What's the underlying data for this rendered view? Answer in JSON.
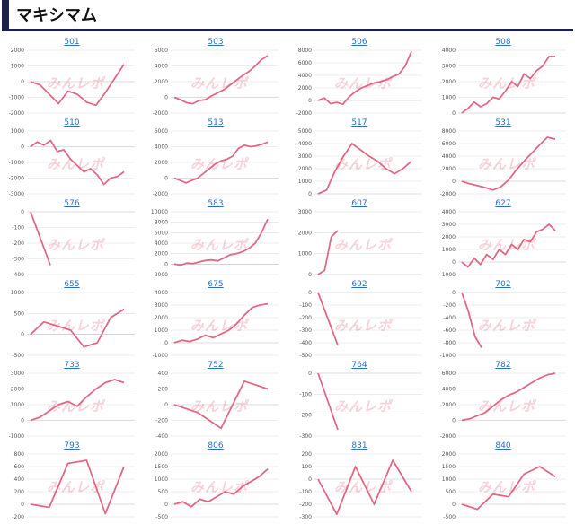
{
  "page": {
    "title": "マキシマム"
  },
  "watermark": "みんレポ",
  "colors": {
    "line": "#e06a85",
    "grid": "#dddddd",
    "accent": "#1d1f4d",
    "link": "#2a6fc4"
  },
  "chart_data": [
    {
      "type": "line",
      "title": "501",
      "yticks": [
        2000,
        1000,
        0,
        -1000,
        -2000
      ],
      "ylim": [
        -2000,
        2000
      ],
      "values": [
        0,
        -200,
        -800,
        -1400,
        -600,
        -800,
        -1300,
        -1500,
        -700,
        200,
        1100
      ]
    },
    {
      "type": "line",
      "title": "503",
      "yticks": [
        6000,
        4000,
        2000,
        0,
        -2000
      ],
      "ylim": [
        -2000,
        6000
      ],
      "values": [
        0,
        -300,
        -700,
        -800,
        -400,
        -300,
        200,
        600,
        1000,
        1600,
        2200,
        2800,
        3300,
        4000,
        4800,
        5300
      ]
    },
    {
      "type": "line",
      "title": "506",
      "yticks": [
        8000,
        6000,
        4000,
        2000,
        0,
        -2000
      ],
      "ylim": [
        -2000,
        8000
      ],
      "values": [
        0,
        400,
        -500,
        -300,
        -600,
        600,
        1400,
        2000,
        2400,
        2800,
        3000,
        3300,
        3800,
        4200,
        5500,
        7800
      ]
    },
    {
      "type": "line",
      "title": "508",
      "yticks": [
        4000,
        3000,
        2000,
        1000,
        0
      ],
      "ylim": [
        0,
        4000
      ],
      "values": [
        0,
        300,
        700,
        400,
        600,
        1000,
        900,
        1400,
        2000,
        1700,
        2500,
        2200,
        2700,
        3000,
        3600,
        3600
      ]
    },
    {
      "type": "line",
      "title": "510",
      "yticks": [
        1000,
        0,
        -1000,
        -2000,
        -3000
      ],
      "ylim": [
        -3000,
        1000
      ],
      "values": [
        0,
        300,
        100,
        400,
        -300,
        -200,
        -800,
        -1200,
        -1600,
        -1400,
        -1800,
        -2400,
        -2000,
        -1900,
        -1600
      ]
    },
    {
      "type": "line",
      "title": "513",
      "yticks": [
        6000,
        4000,
        2000,
        0,
        -2000
      ],
      "ylim": [
        -2000,
        6000
      ],
      "values": [
        0,
        -300,
        -600,
        -300,
        0,
        600,
        1200,
        1800,
        2200,
        2400,
        2800,
        3800,
        4200,
        4000,
        4100,
        4300,
        4600
      ]
    },
    {
      "type": "line",
      "title": "517",
      "yticks": [
        5000,
        4000,
        3000,
        2000,
        1000,
        0
      ],
      "ylim": [
        0,
        5000
      ],
      "values": [
        0,
        300,
        1800,
        3000,
        4000,
        3500,
        3000,
        2600,
        2000,
        1600,
        2000,
        2600
      ]
    },
    {
      "type": "line",
      "title": "531",
      "yticks": [
        8000,
        6000,
        4000,
        2000,
        0,
        -2000
      ],
      "ylim": [
        -2000,
        8000
      ],
      "values": [
        0,
        -400,
        -700,
        -1000,
        -1400,
        -900,
        200,
        1800,
        3200,
        4500,
        5800,
        7000,
        6700
      ]
    },
    {
      "type": "line",
      "title": "576",
      "yticks": [
        0,
        -100,
        -200,
        -300,
        -400
      ],
      "ylim": [
        -400,
        0
      ],
      "values": [
        0,
        -340
      ]
    },
    {
      "type": "line",
      "title": "583",
      "yticks": [
        10000,
        8000,
        6000,
        4000,
        2000,
        0,
        -2000
      ],
      "ylim": [
        -2000,
        10000
      ],
      "values": [
        0,
        -200,
        200,
        100,
        400,
        700,
        800,
        600,
        1200,
        1800,
        2000,
        2400,
        3000,
        4000,
        6000,
        8600
      ]
    },
    {
      "type": "line",
      "title": "607",
      "yticks": [
        3000,
        2000,
        1000,
        0
      ],
      "ylim": [
        0,
        3000
      ],
      "values": [
        0,
        200,
        1800,
        2100
      ]
    },
    {
      "type": "line",
      "title": "627",
      "yticks": [
        4000,
        3000,
        2000,
        1000,
        0,
        -1000
      ],
      "ylim": [
        -1000,
        4000
      ],
      "values": [
        0,
        -400,
        300,
        -200,
        600,
        200,
        1000,
        600,
        1400,
        1000,
        1800,
        1600,
        2400,
        2600,
        3000,
        2500
      ]
    },
    {
      "type": "line",
      "title": "655",
      "yticks": [
        1000,
        500,
        0,
        -500
      ],
      "ylim": [
        -500,
        1000
      ],
      "values": [
        0,
        300,
        200,
        100,
        -300,
        -200,
        400,
        600
      ]
    },
    {
      "type": "line",
      "title": "675",
      "yticks": [
        4000,
        3000,
        2000,
        1000,
        0,
        -1000
      ],
      "ylim": [
        -1000,
        4000
      ],
      "values": [
        0,
        200,
        100,
        300,
        600,
        400,
        700,
        1000,
        1500,
        2200,
        2800,
        3000,
        3100
      ]
    },
    {
      "type": "line",
      "title": "692",
      "yticks": [
        0,
        -100,
        -200,
        -300,
        -400,
        -500
      ],
      "ylim": [
        -500,
        0
      ],
      "values": [
        0,
        -420
      ]
    },
    {
      "type": "line",
      "title": "702",
      "yticks": [
        0,
        -200,
        -400,
        -600,
        -800,
        -1000
      ],
      "ylim": [
        -1000,
        0
      ],
      "values": [
        0,
        -300,
        -700,
        -880
      ]
    },
    {
      "type": "line",
      "title": "733",
      "yticks": [
        3000,
        2000,
        1000,
        0,
        -1000
      ],
      "ylim": [
        -1000,
        3000
      ],
      "values": [
        0,
        200,
        600,
        1000,
        1200,
        900,
        1500,
        2000,
        2400,
        2600,
        2400
      ]
    },
    {
      "type": "line",
      "title": "752",
      "yticks": [
        400,
        200,
        0,
        -200,
        -400
      ],
      "ylim": [
        -400,
        400
      ],
      "values": [
        0,
        -100,
        -300,
        300,
        200
      ]
    },
    {
      "type": "line",
      "title": "764",
      "yticks": [
        0,
        -100,
        -200,
        -300
      ],
      "ylim": [
        -300,
        0
      ],
      "values": [
        0,
        -270
      ]
    },
    {
      "type": "line",
      "title": "782",
      "yticks": [
        6000,
        4000,
        2000,
        0,
        -2000
      ],
      "ylim": [
        -2000,
        6000
      ],
      "values": [
        0,
        200,
        600,
        1000,
        1800,
        2600,
        3200,
        3600,
        4200,
        4800,
        5400,
        5800,
        6000
      ]
    },
    {
      "type": "line",
      "title": "793",
      "yticks": [
        800,
        600,
        400,
        200,
        0,
        -200
      ],
      "ylim": [
        -200,
        800
      ],
      "values": [
        0,
        -50,
        650,
        700,
        -150,
        600
      ]
    },
    {
      "type": "line",
      "title": "806",
      "yticks": [
        2000,
        1500,
        1000,
        500,
        0,
        -500
      ],
      "ylim": [
        -500,
        2000
      ],
      "values": [
        0,
        100,
        -100,
        200,
        100,
        300,
        500,
        400,
        700,
        900,
        1100,
        1400
      ]
    },
    {
      "type": "line",
      "title": "831",
      "yticks": [
        200,
        100,
        0,
        -100,
        -200,
        -300
      ],
      "ylim": [
        -300,
        200
      ],
      "values": [
        0,
        -280,
        100,
        -200,
        150,
        -100
      ]
    },
    {
      "type": "line",
      "title": "840",
      "yticks": [
        2000,
        1500,
        1000,
        500,
        0,
        -500
      ],
      "ylim": [
        -500,
        2000
      ],
      "values": [
        0,
        -200,
        400,
        300,
        1200,
        1500,
        1100
      ]
    }
  ]
}
